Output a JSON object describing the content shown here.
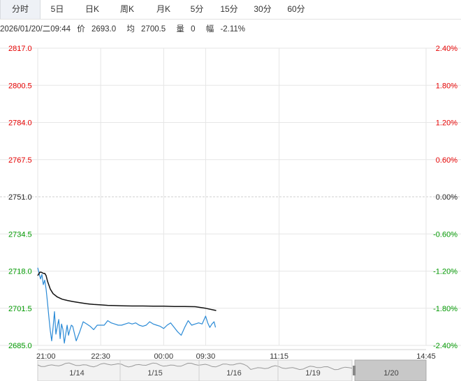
{
  "tabs": [
    "分时",
    "5日",
    "日K",
    "周K",
    "月K",
    "5分",
    "15分",
    "30分",
    "60分"
  ],
  "active_tab": 0,
  "info": {
    "datetime": "2026/01/20/二09:44",
    "price_label": "价",
    "price": "2693.0",
    "avg_label": "均",
    "avg": "2700.5",
    "volume_label": "量",
    "volume": "0",
    "change_label": "幅",
    "change": "-2.11%"
  },
  "colors": {
    "price_line": "#2a8ad6",
    "avg_line": "#111111",
    "up": "#e60000",
    "down": "#009900",
    "flat": "#222222",
    "grid": "#e6e6e6"
  },
  "chart_data": {
    "type": "line",
    "base": 2751.0,
    "ylim": [
      2685.0,
      2817.0
    ],
    "left_ticks": [
      "2817.0",
      "2800.5",
      "2784.0",
      "2767.5",
      "2751.0",
      "2734.5",
      "2718.0",
      "2701.5",
      "2685.0"
    ],
    "right_ticks": [
      "2.40%",
      "1.80%",
      "1.20%",
      "0.60%",
      "0.00%",
      "-0.60%",
      "-1.20%",
      "-1.80%",
      "-2.40%"
    ],
    "x_ticks": [
      "21:00",
      "22:30",
      "00:00",
      "09:30",
      "11:15",
      "14:45"
    ],
    "x_tick_minutes": [
      0,
      90,
      180,
      240,
      345,
      555
    ],
    "session_minutes": 555,
    "series": [
      {
        "x": [
          0,
          2,
          4,
          6,
          8,
          10,
          12,
          14,
          16,
          18,
          20,
          22,
          24,
          26,
          28,
          30,
          32,
          34,
          36,
          38,
          40,
          42,
          44,
          46,
          48,
          50,
          55,
          60,
          65,
          70,
          75,
          80,
          85,
          90,
          95,
          100,
          105,
          110,
          115,
          120,
          125,
          130,
          135,
          140,
          145,
          150,
          155,
          160,
          165,
          170,
          175,
          180,
          185,
          190,
          195,
          200,
          205,
          210,
          215,
          220,
          225,
          230,
          235,
          240,
          243,
          246,
          249,
          252,
          254
        ],
        "values": [
          2719.5,
          2717.0,
          2714.5,
          2716.5,
          2712.0,
          2714.0,
          2710.0,
          2704.0,
          2697.5,
          2691.5,
          2687.0,
          2693.0,
          2700.0,
          2690.0,
          2693.5,
          2696.5,
          2688.0,
          2694.5,
          2692.0,
          2686.0,
          2690.0,
          2694.0,
          2689.5,
          2692.0,
          2694.0,
          2693.5,
          2687.0,
          2691.0,
          2695.5,
          2694.5,
          2693.5,
          2692.0,
          2694.0,
          2694.0,
          2694.0,
          2696.0,
          2695.0,
          2694.5,
          2694.0,
          2694.0,
          2694.5,
          2695.0,
          2694.5,
          2695.0,
          2694.0,
          2693.5,
          2694.0,
          2695.5,
          2694.5,
          2694.0,
          2693.5,
          2692.5,
          2694.0,
          2695.0,
          2693.0,
          2691.0,
          2689.5,
          2693.0,
          2696.0,
          2694.0,
          2694.5,
          2695.0,
          2694.5,
          2698.0,
          2695.0,
          2693.0,
          2694.5,
          2695.5,
          2693.0
        ]
      },
      {
        "x": [
          0,
          3,
          5,
          8,
          10,
          12,
          14,
          18,
          22,
          28,
          35,
          42,
          50,
          60,
          70,
          80,
          90,
          100,
          110,
          120,
          135,
          150,
          165,
          180,
          195,
          210,
          225,
          240,
          255
        ],
        "values": [
          2716.0,
          2717.5,
          2717.5,
          2717.0,
          2717.0,
          2716.0,
          2713.5,
          2710.0,
          2708.0,
          2706.5,
          2705.5,
          2705.0,
          2704.5,
          2704.0,
          2703.5,
          2703.2,
          2703.0,
          2702.8,
          2702.7,
          2702.6,
          2702.5,
          2702.5,
          2702.4,
          2702.4,
          2702.3,
          2702.3,
          2702.2,
          2701.5,
          2700.5
        ]
      }
    ]
  },
  "navigator": {
    "dates": [
      "1/14",
      "1/15",
      "1/16",
      "1/19",
      "1/20"
    ]
  }
}
